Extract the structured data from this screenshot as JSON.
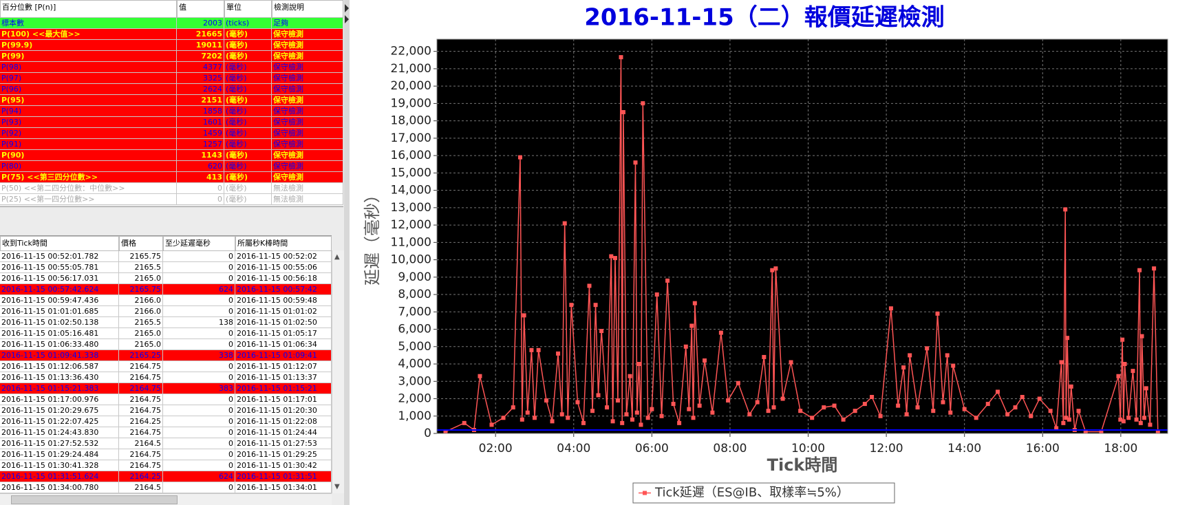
{
  "top_table": {
    "header": [
      "百分位數 [P(n)]",
      "值",
      "單位",
      "檢測說明"
    ],
    "rows": [
      {
        "cells": [
          "標本數",
          2003,
          "(ticks)",
          "足夠"
        ],
        "bg": "#33ff33",
        "fg": "#0000ff",
        "weight": "normal"
      },
      {
        "cells": [
          "P(100) <<最大值>>",
          21665,
          "(毫秒)",
          "保守檢測"
        ],
        "bg": "#ff0000",
        "fg": "#ffff00",
        "weight": "bold"
      },
      {
        "cells": [
          "P(99.9)",
          19011,
          "(毫秒)",
          "保守檢測"
        ],
        "bg": "#ff0000",
        "fg": "#ffff00",
        "weight": "bold"
      },
      {
        "cells": [
          "P(99)",
          7202,
          "(毫秒)",
          "保守檢測"
        ],
        "bg": "#ff0000",
        "fg": "#ffff00",
        "weight": "bold"
      },
      {
        "cells": [
          "P(98)",
          4377,
          "(毫秒)",
          "保守檢測"
        ],
        "bg": "#ff0000",
        "fg": "#0000ff",
        "weight": "normal"
      },
      {
        "cells": [
          "P(97)",
          3325,
          "(毫秒)",
          "保守檢測"
        ],
        "bg": "#ff0000",
        "fg": "#0000ff",
        "weight": "normal"
      },
      {
        "cells": [
          "P(96)",
          2624,
          "(毫秒)",
          "保守檢測"
        ],
        "bg": "#ff0000",
        "fg": "#0000ff",
        "weight": "normal"
      },
      {
        "cells": [
          "P(95)",
          2151,
          "(毫秒)",
          "保守檢測"
        ],
        "bg": "#ff0000",
        "fg": "#ffff00",
        "weight": "bold"
      },
      {
        "cells": [
          "P(94)",
          1858,
          "(毫秒)",
          "保守檢測"
        ],
        "bg": "#ff0000",
        "fg": "#0000ff",
        "weight": "normal"
      },
      {
        "cells": [
          "P(93)",
          1601,
          "(毫秒)",
          "保守檢測"
        ],
        "bg": "#ff0000",
        "fg": "#0000ff",
        "weight": "normal"
      },
      {
        "cells": [
          "P(92)",
          1459,
          "(毫秒)",
          "保守檢測"
        ],
        "bg": "#ff0000",
        "fg": "#0000ff",
        "weight": "normal"
      },
      {
        "cells": [
          "P(91)",
          1257,
          "(毫秒)",
          "保守檢測"
        ],
        "bg": "#ff0000",
        "fg": "#0000ff",
        "weight": "normal"
      },
      {
        "cells": [
          "P(90)",
          1143,
          "(毫秒)",
          "保守檢測"
        ],
        "bg": "#ff0000",
        "fg": "#ffff00",
        "weight": "bold"
      },
      {
        "cells": [
          "P(80)",
          620,
          "(毫秒)",
          "保守檢測"
        ],
        "bg": "#ff0000",
        "fg": "#0000ff",
        "weight": "normal"
      },
      {
        "cells": [
          "P(75) <<第三四分位數>>",
          413,
          "(毫秒)",
          "保守檢測"
        ],
        "bg": "#ff0000",
        "fg": "#ffff00",
        "weight": "bold"
      },
      {
        "cells": [
          "P(50) <<第二四分位數：中位數>>",
          0,
          "(毫秒)",
          "無法檢測"
        ],
        "bg": "#ffffff",
        "fg": "#aaaaaa",
        "weight": "normal"
      },
      {
        "cells": [
          "P(25) <<第一四分位數>>",
          0,
          "(毫秒)",
          "無法檢測"
        ],
        "bg": "#ffffff",
        "fg": "#aaaaaa",
        "weight": "normal"
      }
    ]
  },
  "tick_table": {
    "header": [
      "收到Tick時間",
      "價格",
      "至少延遲毫秒",
      "所屬秒K棒時間"
    ],
    "rows": [
      {
        "cells": [
          "2016-11-15 00:52:01.782",
          "2165.75",
          0,
          "2016-11-15 00:52:02"
        ]
      },
      {
        "cells": [
          "2016-11-15 00:55:05.781",
          "2165.5",
          0,
          "2016-11-15 00:55:06"
        ]
      },
      {
        "cells": [
          "2016-11-15 00:56:17.031",
          "2165.0",
          0,
          "2016-11-15 00:56:18"
        ]
      },
      {
        "cells": [
          "2016-11-15 00:57:42.624",
          "2165.75",
          624,
          "2016-11-15 00:57:42"
        ],
        "bg": "#ff0000",
        "fg": "#0000ff"
      },
      {
        "cells": [
          "2016-11-15 00:59:47.436",
          "2166.0",
          0,
          "2016-11-15 00:59:48"
        ]
      },
      {
        "cells": [
          "2016-11-15 01:01:01.685",
          "2166.0",
          0,
          "2016-11-15 01:01:02"
        ]
      },
      {
        "cells": [
          "2016-11-15 01:02:50.138",
          "2165.5",
          138,
          "2016-11-15 01:02:50"
        ]
      },
      {
        "cells": [
          "2016-11-15 01:05:16.481",
          "2165.0",
          0,
          "2016-11-15 01:05:17"
        ]
      },
      {
        "cells": [
          "2016-11-15 01:06:33.480",
          "2165.0",
          0,
          "2016-11-15 01:06:34"
        ]
      },
      {
        "cells": [
          "2016-11-15 01:09:41.338",
          "2165.25",
          338,
          "2016-11-15 01:09:41"
        ],
        "bg": "#ff0000",
        "fg": "#0000ff"
      },
      {
        "cells": [
          "2016-11-15 01:12:06.587",
          "2164.75",
          0,
          "2016-11-15 01:12:07"
        ]
      },
      {
        "cells": [
          "2016-11-15 01:13:36.430",
          "2164.75",
          0,
          "2016-11-15 01:13:37"
        ]
      },
      {
        "cells": [
          "2016-11-15 01:15:21.383",
          "2164.75",
          383,
          "2016-11-15 01:15:21"
        ],
        "bg": "#ff0000",
        "fg": "#0000ff"
      },
      {
        "cells": [
          "2016-11-15 01:17:00.976",
          "2164.75",
          0,
          "2016-11-15 01:17:01"
        ]
      },
      {
        "cells": [
          "2016-11-15 01:20:29.675",
          "2164.75",
          0,
          "2016-11-15 01:20:30"
        ]
      },
      {
        "cells": [
          "2016-11-15 01:22:07.425",
          "2164.25",
          0,
          "2016-11-15 01:22:08"
        ]
      },
      {
        "cells": [
          "2016-11-15 01:24:43.830",
          "2164.75",
          0,
          "2016-11-15 01:24:44"
        ]
      },
      {
        "cells": [
          "2016-11-15 01:27:52.532",
          "2164.5",
          0,
          "2016-11-15 01:27:53"
        ]
      },
      {
        "cells": [
          "2016-11-15 01:29:24.484",
          "2164.75",
          0,
          "2016-11-15 01:29:25"
        ]
      },
      {
        "cells": [
          "2016-11-15 01:30:41.328",
          "2164.75",
          0,
          "2016-11-15 01:30:42"
        ]
      },
      {
        "cells": [
          "2016-11-15 01:31:51.624",
          "2164.25",
          624,
          "2016-11-15 01:31:51"
        ],
        "bg": "#ff0000",
        "fg": "#0000ff"
      },
      {
        "cells": [
          "2016-11-15 01:34:00.780",
          "2164.5",
          0,
          "2016-11-15 01:34:01"
        ]
      }
    ]
  },
  "chart_data": {
    "type": "line",
    "title": "2016-11-15（二）報價延遲檢測",
    "x_label": "Tick時間",
    "y_label": "延遲（毫秒）",
    "x": [
      0.72,
      1.2,
      1.45,
      1.6,
      1.9,
      2.2,
      2.45,
      2.63,
      2.68,
      2.73,
      2.82,
      2.92,
      3.0,
      3.1,
      3.3,
      3.45,
      3.6,
      3.7,
      3.77,
      3.85,
      3.94,
      4.1,
      4.25,
      4.4,
      4.48,
      4.56,
      4.63,
      4.71,
      4.85,
      4.96,
      5.0,
      5.06,
      5.13,
      5.21,
      5.24,
      5.27,
      5.35,
      5.44,
      5.5,
      5.58,
      5.62,
      5.67,
      5.72,
      5.77,
      5.9,
      6.0,
      6.13,
      6.25,
      6.4,
      6.55,
      6.7,
      6.87,
      6.95,
      7.02,
      7.06,
      7.1,
      7.22,
      7.35,
      7.55,
      7.77,
      7.95,
      8.21,
      8.5,
      8.7,
      8.87,
      8.98,
      9.08,
      9.12,
      9.17,
      9.35,
      9.56,
      9.8,
      10.1,
      10.4,
      10.67,
      10.9,
      11.2,
      11.45,
      11.63,
      11.85,
      12.12,
      12.3,
      12.44,
      12.52,
      12.6,
      12.8,
      13.04,
      13.2,
      13.31,
      13.45,
      13.56,
      13.64,
      13.71,
      14.0,
      14.3,
      14.6,
      14.85,
      15.1,
      15.3,
      15.48,
      15.7,
      15.92,
      16.2,
      16.35,
      16.48,
      16.53,
      16.58,
      16.6,
      16.63,
      16.68,
      16.73,
      16.82,
      16.92,
      17.1,
      17.5,
      17.94,
      17.99,
      18.04,
      18.07,
      18.1,
      18.2,
      18.31,
      18.4,
      18.48,
      18.51,
      18.54,
      18.6,
      18.65,
      18.75,
      18.85,
      18.95
    ],
    "series": [
      {
        "name": "Tick延遲（ES@IB、取樣率≒5%）",
        "color": "#ff5555",
        "values": [
          100,
          600,
          200,
          3300,
          500,
          900,
          1500,
          15900,
          800,
          6800,
          1200,
          4800,
          900,
          4800,
          1900,
          700,
          4600,
          1100,
          12100,
          900,
          7400,
          1800,
          600,
          8500,
          1300,
          7400,
          2200,
          5900,
          1500,
          10200,
          700,
          10100,
          1900,
          21665,
          600,
          18500,
          1100,
          3300,
          800,
          15600,
          1200,
          4000,
          500,
          19011,
          900,
          1400,
          8000,
          1000,
          8800,
          1700,
          600,
          5000,
          1400,
          6200,
          900,
          7500,
          1600,
          4200,
          1200,
          5800,
          1900,
          2900,
          1100,
          1800,
          4400,
          1300,
          9400,
          1500,
          9500,
          2000,
          4100,
          1300,
          900,
          1500,
          1600,
          800,
          1300,
          1700,
          2100,
          1000,
          7200,
          1600,
          3800,
          1100,
          4500,
          1500,
          4900,
          1300,
          6900,
          1800,
          4500,
          1200,
          3900,
          1400,
          900,
          1700,
          2400,
          1100,
          1500,
          2100,
          1000,
          2000,
          1300,
          300,
          4100,
          600,
          12900,
          900,
          5500,
          800,
          2700,
          200,
          1300,
          100,
          100,
          3300,
          800,
          5400,
          700,
          4000,
          900,
          3600,
          800,
          9400,
          600,
          5600,
          900,
          2600,
          500,
          9500,
          100
        ]
      }
    ],
    "reference_line": {
      "value": 200,
      "color": "#0000ff"
    },
    "xlim": [
      0.5,
      19.2
    ],
    "xticks": [
      {
        "value": 2,
        "label": "02:00"
      },
      {
        "value": 4,
        "label": "04:00"
      },
      {
        "value": 6,
        "label": "06:00"
      },
      {
        "value": 8,
        "label": "08:00"
      },
      {
        "value": 10,
        "label": "10:00"
      },
      {
        "value": 12,
        "label": "12:00"
      },
      {
        "value": 14,
        "label": "14:00"
      },
      {
        "value": 16,
        "label": "16:00"
      },
      {
        "value": 18,
        "label": "18:00"
      }
    ],
    "ylim": [
      0,
      22700
    ],
    "yticks": [
      0,
      {
        "value": 1000,
        "label": "1,000"
      },
      {
        "value": 2000,
        "label": "2,000"
      },
      {
        "value": 3000,
        "label": "3,000"
      },
      {
        "value": 4000,
        "label": "4,000"
      },
      {
        "value": 5000,
        "label": "5,000"
      },
      {
        "value": 6000,
        "label": "6,000"
      },
      {
        "value": 7000,
        "label": "7,000"
      },
      {
        "value": 8000,
        "label": "8,000"
      },
      {
        "value": 9000,
        "label": "9,000"
      },
      {
        "value": 10000,
        "label": "10,000"
      },
      {
        "value": 11000,
        "label": "11,000"
      },
      {
        "value": 12000,
        "label": "12,000"
      },
      {
        "value": 13000,
        "label": "13,000"
      },
      {
        "value": 14000,
        "label": "14,000"
      },
      {
        "value": 15000,
        "label": "15,000"
      },
      {
        "value": 16000,
        "label": "16,000"
      },
      {
        "value": 17000,
        "label": "17,000"
      },
      {
        "value": 18000,
        "label": "18,000"
      },
      {
        "value": 19000,
        "label": "19,000"
      },
      {
        "value": 20000,
        "label": "20,000"
      },
      {
        "value": 21000,
        "label": "21,000"
      },
      {
        "value": 22000,
        "label": "22,000"
      }
    ],
    "grid": true,
    "legend": "bottom"
  }
}
